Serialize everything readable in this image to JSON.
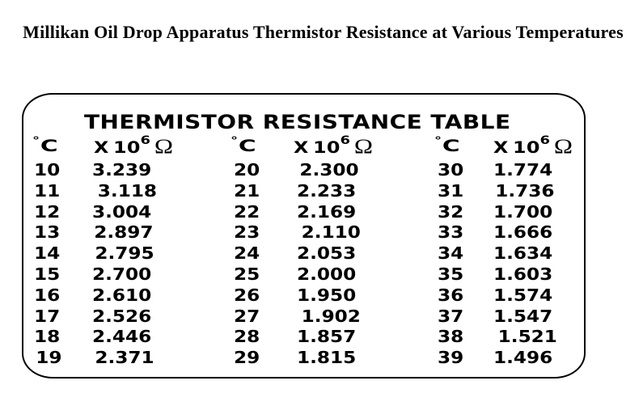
{
  "title": "Millikan Oil Drop Apparatus Thermistor Resistance at Various Temperatures",
  "table": {
    "heading": "THERMISTOR RESISTANCE TABLE",
    "column_header": {
      "degree_symbol": "°",
      "temp_unit": "C",
      "resistance_prefix": "X 10",
      "resistance_exponent": "6",
      "resistance_unit": "Ω"
    },
    "groups": [
      {
        "temps": [
          "10",
          "11",
          "12",
          "13",
          "14",
          "15",
          "16",
          "17",
          "18",
          "19"
        ],
        "values": [
          "3.239",
          "3.118",
          "3.004",
          "2.897",
          "2.795",
          "2.700",
          "2.610",
          "2.526",
          "2.446",
          "2.371"
        ]
      },
      {
        "temps": [
          "20",
          "21",
          "22",
          "23",
          "24",
          "25",
          "26",
          "27",
          "28",
          "29"
        ],
        "values": [
          "2.300",
          "2.233",
          "2.169",
          "2.110",
          "2.053",
          "2.000",
          "1.950",
          "1.902",
          "1.857",
          "1.815"
        ]
      },
      {
        "temps": [
          "30",
          "31",
          "32",
          "33",
          "34",
          "35",
          "36",
          "37",
          "38",
          "39"
        ],
        "values": [
          "1.774",
          "1.736",
          "1.700",
          "1.666",
          "1.634",
          "1.603",
          "1.574",
          "1.547",
          "1.521",
          "1.496"
        ]
      }
    ]
  },
  "colors": {
    "background": "#ffffff",
    "text": "#000000",
    "border": "#000000"
  },
  "chart_data": {
    "type": "table",
    "title": "THERMISTOR RESISTANCE TABLE",
    "columns": [
      "°C",
      "X 10^6 Ω",
      "°C",
      "X 10^6 Ω",
      "°C",
      "X 10^6 Ω"
    ],
    "temperatures_c": [
      10,
      11,
      12,
      13,
      14,
      15,
      16,
      17,
      18,
      19,
      20,
      21,
      22,
      23,
      24,
      25,
      26,
      27,
      28,
      29,
      30,
      31,
      32,
      33,
      34,
      35,
      36,
      37,
      38,
      39
    ],
    "resistance_megohm": [
      3.239,
      3.118,
      3.004,
      2.897,
      2.795,
      2.7,
      2.61,
      2.526,
      2.446,
      2.371,
      2.3,
      2.233,
      2.169,
      2.11,
      2.053,
      2.0,
      1.95,
      1.902,
      1.857,
      1.815,
      1.774,
      1.736,
      1.7,
      1.666,
      1.634,
      1.603,
      1.574,
      1.547,
      1.521,
      1.496
    ]
  }
}
